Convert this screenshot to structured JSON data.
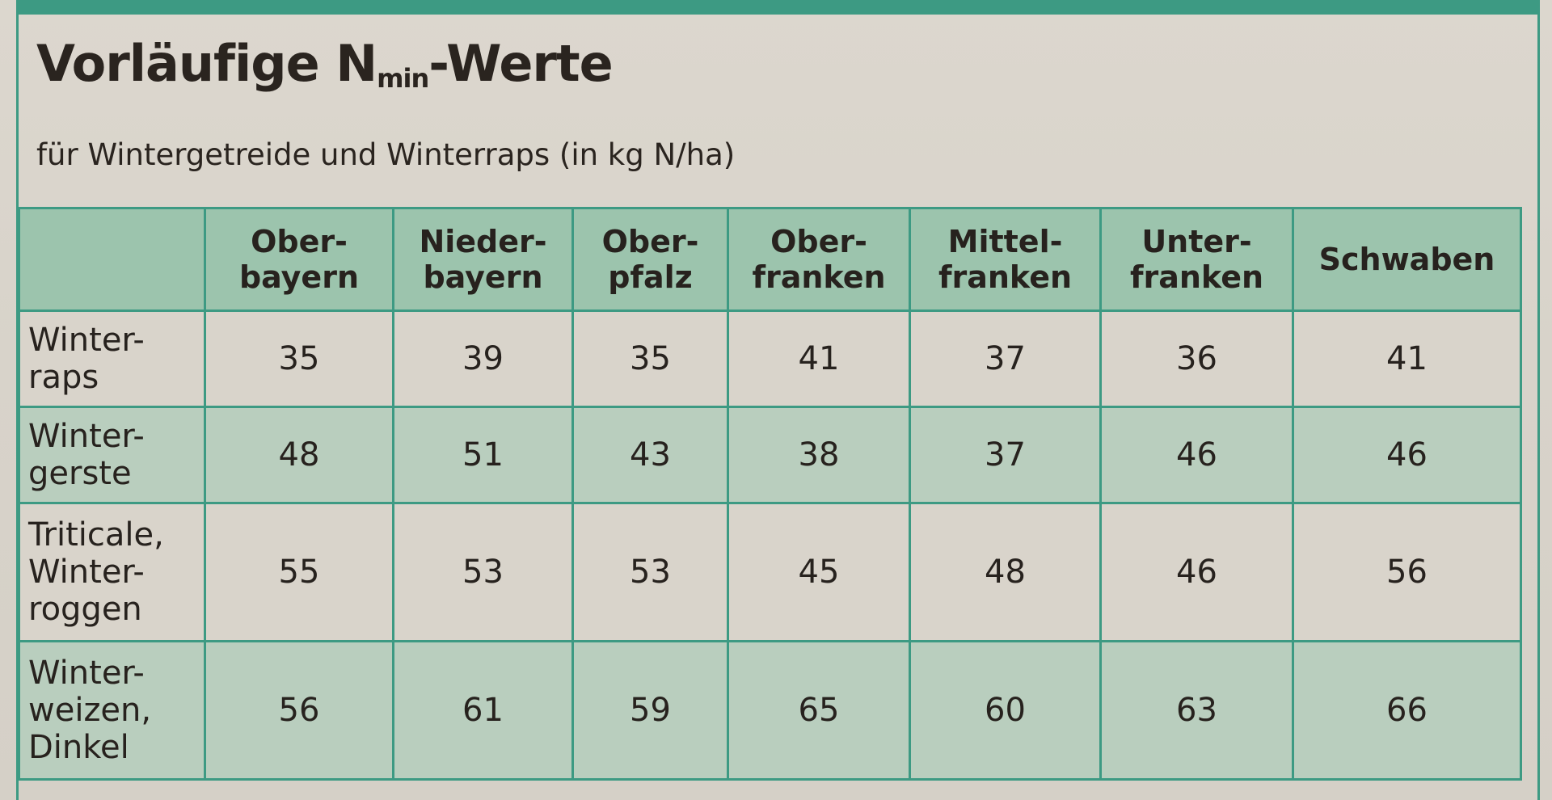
{
  "title": {
    "main": "Vorläufige N",
    "subscript": "min",
    "suffix": "-Werte"
  },
  "subtitle": "für Wintergetreide und Winterraps (in kg N/ha)",
  "table": {
    "columns": [
      [
        "Ober-",
        "bayern"
      ],
      [
        "Nieder-",
        "bayern"
      ],
      [
        "Ober-",
        "pfalz"
      ],
      [
        "Ober-",
        "franken"
      ],
      [
        "Mittel-",
        "franken"
      ],
      [
        "Unter-",
        "franken"
      ],
      [
        "Schwaben"
      ]
    ],
    "rows": [
      {
        "label": [
          "Winter-",
          "raps"
        ],
        "values": [
          "35",
          "39",
          "35",
          "41",
          "37",
          "36",
          "41"
        ]
      },
      {
        "label": [
          "Winter-",
          "gerste"
        ],
        "values": [
          "48",
          "51",
          "43",
          "38",
          "37",
          "46",
          "46"
        ]
      },
      {
        "label": [
          "Triticale,",
          "Winter-",
          "roggen"
        ],
        "values": [
          "55",
          "53",
          "53",
          "45",
          "48",
          "46",
          "56"
        ]
      },
      {
        "label": [
          "Winter-",
          "weizen,",
          "Dinkel"
        ],
        "values": [
          "56",
          "61",
          "59",
          "65",
          "60",
          "63",
          "66"
        ]
      }
    ]
  },
  "colors": {
    "accent_green": "#3d9a83",
    "header_fill": "#9cc4ad",
    "band_fill": "#b9cebe",
    "paper": "#d9d4cb",
    "text": "#27221e"
  }
}
